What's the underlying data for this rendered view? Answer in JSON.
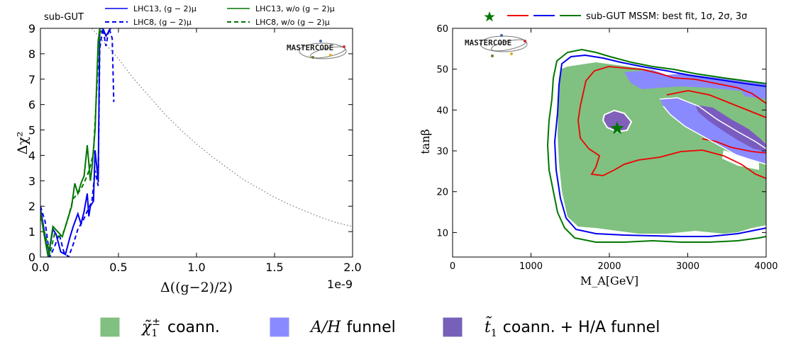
{
  "chart_data": [
    {
      "type": "line",
      "panel_label": "sub-GUT",
      "xlabel": "Δ((g−2)/2)",
      "ylabel": "Δχ²",
      "x_offset_label": "1e-9",
      "xlim": [
        0.0,
        2.0
      ],
      "ylim": [
        0,
        9
      ],
      "x_ticks": [
        "0.0",
        "0.5",
        "1.0",
        "1.5",
        "2.0"
      ],
      "y_ticks": [
        "0",
        "1",
        "2",
        "3",
        "4",
        "5",
        "6",
        "7",
        "8",
        "9"
      ],
      "legend": [
        {
          "label": "LHC13, (g − 2)μ",
          "color": "#0000ee",
          "style": "solid"
        },
        {
          "label": "LHC8, (g − 2)μ",
          "color": "#0000ee",
          "style": "dashed"
        },
        {
          "label": "LHC13, w/o (g − 2)μ",
          "color": "#007700",
          "style": "solid"
        },
        {
          "label": "LHC8, w/o (g − 2)μ",
          "color": "#007700",
          "style": "dashed"
        }
      ],
      "series": [
        {
          "name": "LHC13, (g − 2)μ",
          "color": "#0000ee",
          "style": "solid",
          "x": [
            0.0,
            0.02,
            0.05,
            0.08,
            0.1,
            0.13,
            0.16,
            0.19,
            0.21,
            0.24,
            0.26,
            0.28,
            0.3,
            0.31,
            0.32,
            0.34,
            0.35,
            0.37,
            0.38,
            0.4,
            0.42,
            0.45
          ],
          "y": [
            1.9,
            1.2,
            0.0,
            1.1,
            0.9,
            0.2,
            0.1,
            0.8,
            1.2,
            1.7,
            1.3,
            1.8,
            2.5,
            1.6,
            2.0,
            2.2,
            4.2,
            3.0,
            9.0,
            9.0,
            8.7,
            9.0
          ]
        },
        {
          "name": "LHC8, (g − 2)μ",
          "color": "#0000ee",
          "style": "dashed",
          "x": [
            0.0,
            0.03,
            0.06,
            0.09,
            0.12,
            0.15,
            0.18,
            0.21,
            0.24,
            0.27,
            0.3,
            0.33,
            0.35,
            0.37,
            0.38,
            0.4,
            0.42,
            0.44,
            0.46,
            0.47
          ],
          "y": [
            2.0,
            1.4,
            0.0,
            0.4,
            0.9,
            0.2,
            0.0,
            0.5,
            1.1,
            1.4,
            1.8,
            2.2,
            3.4,
            2.8,
            8.2,
            9.0,
            8.3,
            9.0,
            8.6,
            6.1
          ]
        },
        {
          "name": "LHC13, w/o (g − 2)μ",
          "color": "#007700",
          "style": "solid",
          "x": [
            0.0,
            0.02,
            0.05,
            0.08,
            0.11,
            0.14,
            0.17,
            0.2,
            0.22,
            0.24,
            0.26,
            0.28,
            0.3,
            0.32,
            0.33,
            0.35,
            0.37,
            0.38
          ],
          "y": [
            1.8,
            1.0,
            0.0,
            1.2,
            1.0,
            0.8,
            1.4,
            2.0,
            2.9,
            2.5,
            2.9,
            3.2,
            4.4,
            3.0,
            3.5,
            5.0,
            8.5,
            9.0
          ]
        },
        {
          "name": "LHC8, w/o (g − 2)μ",
          "color": "#007700",
          "style": "dashed",
          "x": [
            0.0,
            0.03,
            0.06,
            0.09,
            0.12,
            0.15,
            0.18,
            0.21,
            0.24,
            0.27,
            0.3,
            0.32,
            0.34,
            0.36,
            0.38,
            0.4
          ],
          "y": [
            1.6,
            0.9,
            0.1,
            0.9,
            0.8,
            1.0,
            1.6,
            2.3,
            2.5,
            2.8,
            3.2,
            3.6,
            4.1,
            6.5,
            8.8,
            9.0
          ]
        },
        {
          "name": "",
          "color": "#888888",
          "style": "dotted",
          "x": [
            0.33,
            0.4,
            0.5,
            0.6,
            0.7,
            0.8,
            0.9,
            1.0,
            1.1,
            1.2,
            1.3,
            1.4,
            1.5,
            1.6,
            1.7,
            1.8,
            1.9,
            2.0
          ],
          "y": [
            9.0,
            8.5,
            7.8,
            7.0,
            6.3,
            5.6,
            5.0,
            4.45,
            3.95,
            3.5,
            3.05,
            2.7,
            2.35,
            2.05,
            1.8,
            1.55,
            1.35,
            1.2
          ]
        }
      ]
    },
    {
      "type": "heatmap",
      "xlabel": "M_A[GeV]",
      "ylabel": "tanβ",
      "xlim": [
        0,
        4000
      ],
      "ylim": [
        4,
        60
      ],
      "x_ticks": [
        "0",
        "1000",
        "2000",
        "3000",
        "4000"
      ],
      "y_ticks": [
        "10",
        "20",
        "30",
        "40",
        "50",
        "60"
      ],
      "legend_text": "sub-GUT MSSM: best fit, 1σ, 2σ, 3σ",
      "best_fit": {
        "x": 2100,
        "y": 35.5,
        "color": "#007700"
      },
      "contours": [
        {
          "level": "1σ",
          "color": "#ee0000"
        },
        {
          "level": "2σ",
          "color": "#0000ee"
        },
        {
          "level": "3σ",
          "color": "#007700"
        }
      ],
      "regions": [
        {
          "name": "χ̃1± coann.",
          "color": "#80c080"
        },
        {
          "name": "A/H funnel",
          "color": "#8080ff"
        },
        {
          "name": "t̃1 coann. + H/A funnel",
          "color": "#8060c0"
        }
      ]
    }
  ],
  "bottom_legend": [
    {
      "symbol": "χ̃",
      "sub": "1",
      "sup": "±",
      "text": "coann.",
      "color": "#80c080"
    },
    {
      "symbol": "A/H",
      "sub": "",
      "sup": "",
      "text": "funnel",
      "color": "#8080ff"
    },
    {
      "symbol": "t̃",
      "sub": "1",
      "sup": "",
      "text": "coann. + H/A funnel",
      "color": "#7660b8"
    }
  ],
  "logo_text": "MASTERCODE"
}
